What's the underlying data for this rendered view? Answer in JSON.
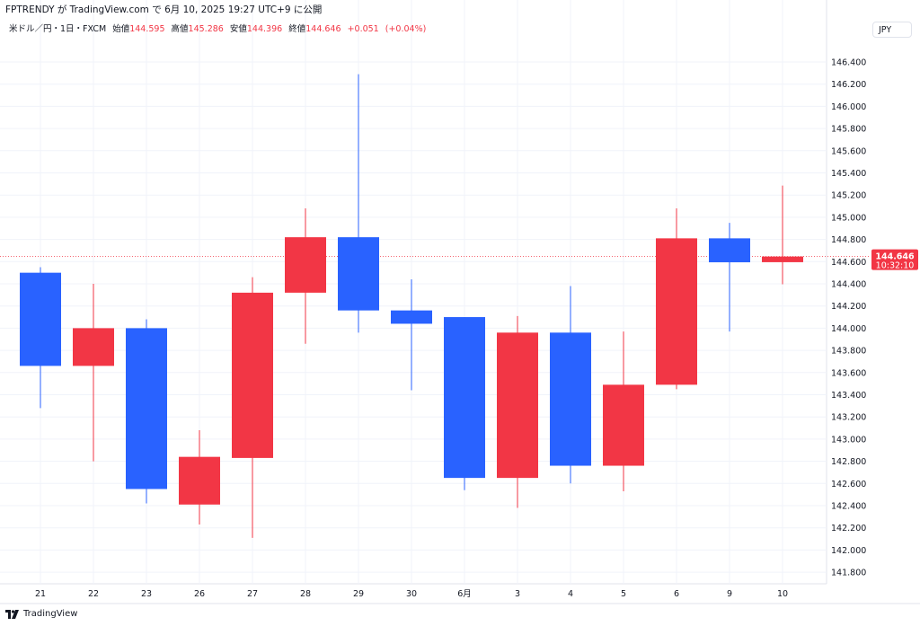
{
  "header": {
    "publisher_line": "FPTRENDY が TradingView.com で 6月 10, 2025 19:27 UTC+9 に公開"
  },
  "legend": {
    "symbol": "米ドル／円・1日・FXCM",
    "open_label": "始値",
    "open": "144.595",
    "high_label": "高値",
    "high": "145.286",
    "low_label": "安値",
    "low": "144.396",
    "close_label": "終値",
    "close": "144.646",
    "change": "+0.051",
    "change_pct": "(+0.04%)"
  },
  "currency_button": "JPY",
  "last_price_label": {
    "price": "144.646",
    "countdown": "10:32:10"
  },
  "footer": {
    "brand": "TradingView"
  },
  "colors": {
    "up": "#F23645",
    "down": "#2962FF",
    "grid": "#f0f3fa"
  },
  "chart_data": {
    "type": "candlestick",
    "title": "",
    "xlabel": "",
    "ylabel": "",
    "ylim": [
      141.8,
      146.4
    ],
    "y_ticks": [
      "141.800",
      "142.000",
      "142.200",
      "142.400",
      "142.600",
      "142.800",
      "143.000",
      "143.200",
      "143.400",
      "143.600",
      "143.800",
      "144.000",
      "144.200",
      "144.400",
      "144.600",
      "144.800",
      "145.000",
      "145.200",
      "145.400",
      "145.600",
      "145.800",
      "146.000",
      "146.200",
      "146.400"
    ],
    "grid": true,
    "last_price": 144.646,
    "categories": [
      "21",
      "22",
      "23",
      "26",
      "27",
      "28",
      "29",
      "30",
      "6月",
      "3",
      "4",
      "5",
      "6",
      "9",
      "10"
    ],
    "ohlc": [
      [
        144.5,
        144.55,
        143.28,
        143.66
      ],
      [
        143.66,
        144.4,
        142.8,
        144.0
      ],
      [
        144.0,
        144.08,
        142.42,
        142.55
      ],
      [
        142.41,
        143.08,
        142.23,
        142.84
      ],
      [
        142.83,
        144.46,
        142.11,
        144.32
      ],
      [
        144.32,
        145.08,
        143.86,
        144.82
      ],
      [
        144.82,
        146.29,
        143.96,
        144.16
      ],
      [
        144.16,
        144.44,
        143.44,
        144.04
      ],
      [
        144.1,
        144.1,
        142.54,
        142.65
      ],
      [
        142.65,
        144.11,
        142.38,
        143.96
      ],
      [
        143.96,
        144.38,
        142.6,
        142.76
      ],
      [
        142.76,
        143.97,
        142.53,
        143.49
      ],
      [
        143.49,
        145.08,
        143.45,
        144.81
      ],
      [
        144.81,
        144.95,
        143.97,
        144.594
      ],
      [
        144.595,
        145.286,
        144.396,
        144.646
      ]
    ]
  }
}
